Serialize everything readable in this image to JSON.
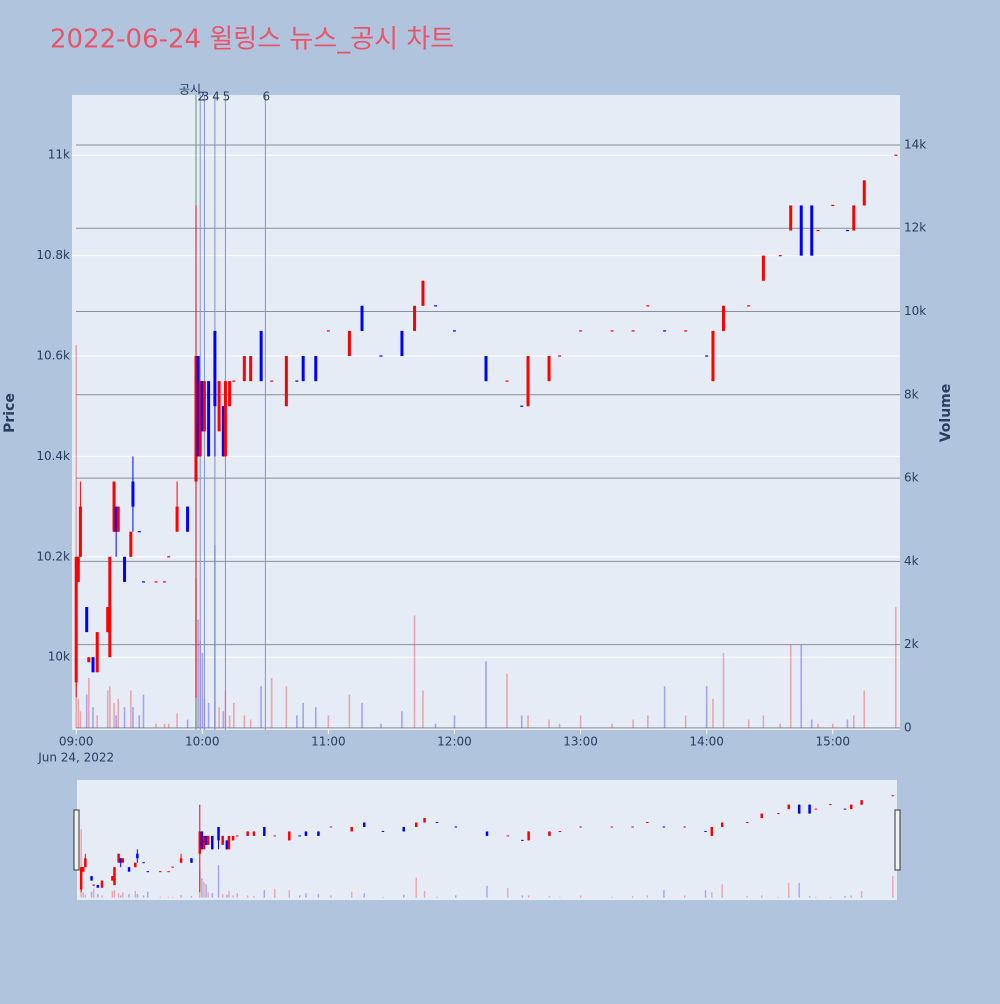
{
  "chart_data": {
    "type": "candlestick",
    "title": "2022-06-24 윌링스 뉴스_공시 차트",
    "y_label": "Price",
    "y2_label": "Volume",
    "x_date_label": "Jun 24, 2022",
    "up_color": "#ff0000",
    "down_color": "#0000ff",
    "x": [
      "09:00",
      "09:01",
      "09:02",
      "09:05",
      "09:06",
      "09:08",
      "09:10",
      "09:15",
      "09:16",
      "09:18",
      "09:19",
      "09:20",
      "09:23",
      "09:26",
      "09:27",
      "09:30",
      "09:32",
      "09:38",
      "09:42",
      "09:44",
      "09:48",
      "09:53",
      "09:57",
      "09:58",
      "09:59",
      "10:00",
      "10:01",
      "10:03",
      "10:06",
      "10:08",
      "10:10",
      "10:11",
      "10:13",
      "10:15",
      "10:20",
      "10:23",
      "10:28",
      "10:33",
      "10:40",
      "10:45",
      "10:48",
      "10:54",
      "11:00",
      "11:10",
      "11:16",
      "11:25",
      "11:35",
      "11:41",
      "11:45",
      "11:51",
      "12:00",
      "12:15",
      "12:25",
      "12:32",
      "12:35",
      "12:45",
      "12:50",
      "13:00",
      "13:15",
      "13:25",
      "13:32",
      "13:40",
      "13:50",
      "14:00",
      "14:03",
      "14:08",
      "14:20",
      "14:27",
      "14:35",
      "14:40",
      "14:45",
      "14:50",
      "14:53",
      "15:00",
      "15:07",
      "15:10",
      "15:15",
      "15:30"
    ],
    "open": [
      9950,
      10150,
      10200,
      10100,
      9990,
      10000,
      9970,
      10050,
      10000,
      10250,
      10300,
      10250,
      10200,
      10200,
      10350,
      10250,
      10150,
      10150,
      10150,
      10200,
      10250,
      10300,
      10350,
      10600,
      10400,
      10550,
      10450,
      10550,
      10650,
      10450,
      10500,
      10400,
      10500,
      10550,
      10550,
      10550,
      10650,
      10550,
      10500,
      10550,
      10600,
      10600,
      10650,
      10600,
      10700,
      10600,
      10650,
      10650,
      10700,
      10700,
      10650,
      10600,
      10550,
      10500,
      10500,
      10550,
      10600,
      10650,
      10650,
      10650,
      10700,
      10650,
      10650,
      10600,
      10550,
      10650,
      10700,
      10750,
      10800,
      10850,
      10900,
      10900,
      10850,
      10900,
      10850,
      10850,
      10900,
      11000
    ],
    "high": [
      10200,
      10200,
      10350,
      10100,
      10000,
      10000,
      10050,
      10100,
      10200,
      10350,
      10300,
      10300,
      10200,
      10250,
      10400,
      10250,
      10150,
      10150,
      10150,
      10200,
      10350,
      10300,
      10900,
      10600,
      10550,
      10550,
      10550,
      10550,
      10650,
      10550,
      10500,
      10550,
      10550,
      10550,
      10600,
      10600,
      10650,
      10550,
      10600,
      10550,
      10600,
      10600,
      10650,
      10650,
      10700,
      10600,
      10650,
      10700,
      10750,
      10700,
      10650,
      10600,
      10550,
      10500,
      10600,
      10600,
      10600,
      10650,
      10650,
      10650,
      10700,
      10650,
      10650,
      10600,
      10650,
      10700,
      10700,
      10800,
      10800,
      10900,
      10900,
      10900,
      10850,
      10900,
      10850,
      10900,
      10950,
      11000
    ],
    "low": [
      9920,
      10150,
      10200,
      10050,
      9990,
      9970,
      9970,
      10050,
      10000,
      10250,
      10200,
      10250,
      10150,
      10200,
      10250,
      10250,
      10150,
      10150,
      10150,
      10200,
      10250,
      10250,
      9920,
      10400,
      10400,
      10450,
      10450,
      10400,
      10400,
      10450,
      10400,
      10400,
      10500,
      10550,
      10550,
      10550,
      10550,
      10550,
      10500,
      10550,
      10550,
      10550,
      10650,
      10600,
      10650,
      10600,
      10600,
      10650,
      10700,
      10700,
      10650,
      10550,
      10550,
      10500,
      10500,
      10550,
      10600,
      10650,
      10650,
      10650,
      10700,
      10650,
      10650,
      10600,
      10550,
      10650,
      10700,
      10750,
      10800,
      10850,
      10800,
      10800,
      10850,
      10900,
      10850,
      10850,
      10900,
      11000
    ],
    "close": [
      10200,
      10200,
      10300,
      10050,
      10000,
      9970,
      10050,
      10100,
      10200,
      10350,
      10250,
      10300,
      10150,
      10250,
      10300,
      10250,
      10150,
      10150,
      10150,
      10200,
      10300,
      10250,
      10600,
      10400,
      10550,
      10450,
      10550,
      10400,
      10500,
      10550,
      10400,
      10550,
      10550,
      10550,
      10600,
      10600,
      10550,
      10550,
      10600,
      10550,
      10550,
      10550,
      10650,
      10650,
      10650,
      10600,
      10600,
      10700,
      10750,
      10700,
      10650,
      10550,
      10550,
      10500,
      10600,
      10600,
      10600,
      10650,
      10650,
      10650,
      10700,
      10650,
      10650,
      10600,
      10650,
      10700,
      10700,
      10800,
      10800,
      10900,
      10800,
      10800,
      10850,
      10900,
      10850,
      10900,
      10950,
      11000
    ],
    "volume": [
      9200,
      700,
      400,
      800,
      1200,
      500,
      300,
      900,
      1000,
      600,
      300,
      700,
      500,
      900,
      500,
      300,
      800,
      100,
      100,
      100,
      350,
      200,
      3600,
      2600,
      2100,
      1800,
      700,
      600,
      4400,
      500,
      400,
      900,
      300,
      600,
      300,
      200,
      1000,
      1200,
      1000,
      300,
      600,
      500,
      300,
      800,
      600,
      100,
      400,
      2700,
      900,
      100,
      300,
      1600,
      1300,
      300,
      300,
      200,
      100,
      300,
      100,
      200,
      300,
      1000,
      300,
      1000,
      700,
      1800,
      200,
      300,
      100,
      2000,
      2000,
      200,
      100,
      100,
      200,
      300,
      900,
      2900
    ],
    "xlim": [
      "08:58",
      "15:32"
    ],
    "xticks": [
      "09:00",
      "10:00",
      "11:00",
      "12:00",
      "13:00",
      "14:00",
      "15:00"
    ],
    "ylim": [
      9855,
      11120
    ],
    "yticks": [
      {
        "value": 10000,
        "label": "10k"
      },
      {
        "value": 10200,
        "label": "10.2k"
      },
      {
        "value": 10400,
        "label": "10.4k"
      },
      {
        "value": 10600,
        "label": "10.6k"
      },
      {
        "value": 10800,
        "label": "10.8k"
      },
      {
        "value": 11000,
        "label": "11k"
      }
    ],
    "y2lim": [
      -50,
      15200
    ],
    "y2ticks": [
      0,
      {
        "value": 2000,
        "label": "2k"
      },
      {
        "value": 4000,
        "label": "4k"
      },
      {
        "value": 6000,
        "label": "6k"
      },
      {
        "value": 8000,
        "label": "8k"
      },
      {
        "value": 10000,
        "label": "10k"
      },
      {
        "value": 12000,
        "label": "12k"
      },
      {
        "value": 14000,
        "label": "14k"
      }
    ],
    "events": [
      {
        "x": "09:57",
        "label": "공시",
        "color": "#5a9a6a"
      },
      {
        "x": "09:59",
        "label": "2",
        "color": "#7f8fe0"
      },
      {
        "x": "10:01",
        "label": "3",
        "color": "#7f8fe0"
      },
      {
        "x": "10:06",
        "label": "4",
        "color": "#7f8fe0"
      },
      {
        "x": "10:11",
        "label": "5",
        "color": "#7f8fe0"
      },
      {
        "x": "10:30",
        "label": "6",
        "color": "#7f8fe0"
      }
    ],
    "rangeslider": true
  }
}
